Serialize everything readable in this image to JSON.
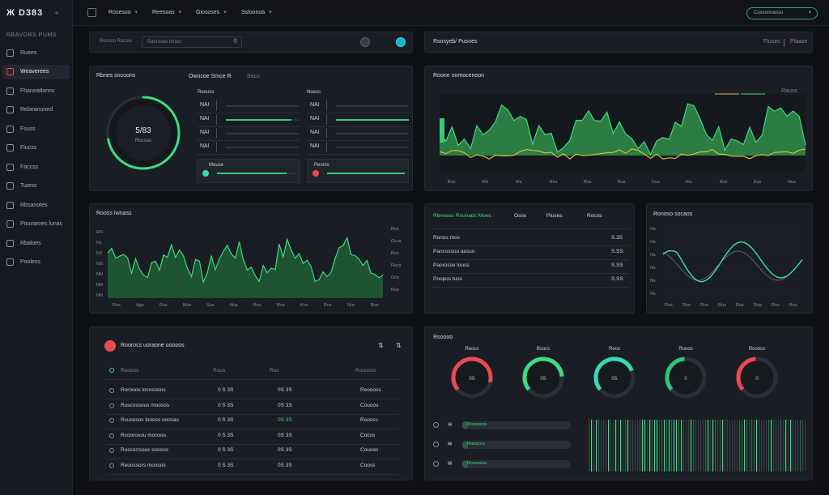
{
  "sidebar": {
    "logo": "Ж D383",
    "logo_mini": "«",
    "section": "RBAVORS PUMS",
    "items": [
      {
        "label": "Ruees",
        "icon": "circle-icon"
      },
      {
        "label": "Weaverees",
        "icon": "grid-icon"
      },
      {
        "label": "Fhaneatlonns",
        "icon": "doc-icon"
      },
      {
        "label": "Rebeanuned",
        "icon": "list-icon"
      },
      {
        "label": "Fsuss",
        "icon": "window-icon"
      },
      {
        "label": "Fiucss",
        "icon": "window-icon"
      },
      {
        "label": "Faccss",
        "icon": "folder-icon"
      },
      {
        "label": "Tuiess",
        "icon": "globe-icon"
      },
      {
        "label": "Rbsanotes",
        "icon": "box-icon"
      },
      {
        "label": "Pouvaroes lunas",
        "icon": "box-icon"
      },
      {
        "label": "Rbaloes",
        "icon": "window-icon"
      },
      {
        "label": "Pooless",
        "icon": "message-icon"
      }
    ]
  },
  "topbar": {
    "menus": [
      "Rosesoo",
      "Reesoas",
      "Giososes",
      "Ssloonoa"
    ],
    "pill": "Cossoonasso",
    "pill_close": "×"
  },
  "p1": {
    "label": "Rocsos Rucsis",
    "search_placeholder": "Rasrovas lirnas",
    "search_glyph": "Q"
  },
  "p2": {
    "title": "Rsosyeb/ Pusoes",
    "right_a": "Fluses",
    "right_b": "Plaase"
  },
  "p3": {
    "title": "Rbnes socuons",
    "sub_title": "Owncoe Smce R",
    "sub_tag": "Soco",
    "gauge_value": "5/83",
    "gauge_sub": "Roccas",
    "gauge_percent": 72,
    "col1_head": "Reouss",
    "col2_head": "Noess",
    "col1_rows": [
      {
        "label": "NAI",
        "value": 0
      },
      {
        "label": "NAI",
        "value": 0.9
      },
      {
        "label": "NAI",
        "value": 0
      },
      {
        "label": "NAI",
        "value": 0
      }
    ],
    "col2_rows": [
      {
        "label": "NAI",
        "value": 0
      },
      {
        "label": "NAI",
        "value": 1
      },
      {
        "label": "NAI",
        "value": 0
      },
      {
        "label": "NAI",
        "value": 0
      }
    ],
    "card1_label": "Mouse",
    "card2_label": "Peoms"
  },
  "p4": {
    "title": "Roone oomocenoon",
    "legend": "Rauss",
    "y_labels": [
      "———",
      "———",
      "———"
    ],
    "x_labels": [
      "Bus",
      "RN",
      "Ms",
      "Bns",
      "Rss",
      "Bus",
      "Cus",
      "Ris",
      "Aos",
      "Ess",
      "Nus"
    ]
  },
  "p5": {
    "title": "Rooss Iwnass",
    "x_labels": [
      "Rus",
      "Ags",
      "Rus",
      "Mus",
      "Sus",
      "Nus",
      "Rus",
      "Rus",
      "Kus",
      "Bus",
      "Nus",
      "Bus"
    ],
    "y_labels": [
      "RN",
      "Ns",
      "N3",
      "NN",
      "NN",
      "NN",
      "NN"
    ],
    "y_right": [
      "Rus",
      "Ocss",
      "Rus",
      "Rocs",
      "Oos",
      "Rus"
    ]
  },
  "p6": {
    "head": [
      "Rbnoeas Rounads Moes",
      "Osos",
      "Pluses",
      "Rocos"
    ],
    "rows": [
      {
        "label": "Ronos mos",
        "value": "S.3S"
      },
      {
        "label": "Pancossou ausso",
        "value": "S.SS"
      },
      {
        "label": "Paorosse louss",
        "value": "S.SS"
      },
      {
        "label": "Poopos tuss",
        "value": "S.SS"
      }
    ]
  },
  "p7": {
    "title": "Ronoso socaos",
    "x_labels": [
      "Rus",
      "Ros",
      "Rus",
      "Rus",
      "Rus",
      "Rus",
      "Rus",
      "Rus"
    ],
    "y_labels": [
      "Ns",
      "Ns",
      "Ns",
      "Ns",
      "Ns",
      "Ns"
    ]
  },
  "p8": {
    "title": "Roorocs uoraone uoooos",
    "icon": "eye-icon",
    "head": [
      "Rooons",
      "Rous",
      "Ros",
      "Roucoos"
    ],
    "rows": [
      {
        "name": "Rorooos locosooos",
        "a": "0 S 3S",
        "b": "0S 3S",
        "c": "Reoooss"
      },
      {
        "name": "Ruscossous moosos",
        "a": "0 S 3S",
        "b": "0S 3S",
        "c": "Couoos"
      },
      {
        "name": "Rcusosos loooss ooosas",
        "a": "0 S 3S",
        "b": "0S 3S",
        "c": "Rooocs"
      },
      {
        "name": "Rcoorosou moosos",
        "a": "0 S 3S",
        "b": "0S 3S",
        "c": "Cocos"
      },
      {
        "name": "Ruscorrsouc soosos",
        "a": "0 S 3S",
        "b": "0S 3S",
        "c": "Couoos"
      },
      {
        "name": "Reuossors moosos",
        "a": "0 S 3S",
        "b": "0S 3S",
        "c": "Cooss"
      }
    ]
  },
  "p9": {
    "title": "Rsoooo",
    "gauges": [
      {
        "label": "Roocs",
        "value": "0S",
        "color": "#e94b55",
        "percent": 65
      },
      {
        "label": "Bsocs",
        "value": "0S",
        "color": "#3ddc84",
        "percent": 60
      },
      {
        "label": "Roos",
        "value": "0S",
        "color": "#35d9b4",
        "percent": 55
      },
      {
        "label": "Rooos",
        "value": "0",
        "color": "#2fc47a",
        "percent": 35
      },
      {
        "label": "Rooocs",
        "value": "0",
        "color": "#e94b55",
        "percent": 35
      }
    ],
    "bars": [
      {
        "label": "Rosoocos",
        "value": 0.05
      },
      {
        "label": "Rooocos",
        "value": 0.05
      },
      {
        "label": "Rosooooc",
        "value": 0.05
      }
    ]
  },
  "colors": {
    "accent": "#3ddc84",
    "danger": "#e94b55",
    "teal": "#35d9b4",
    "yellow": "#e0b83a"
  }
}
